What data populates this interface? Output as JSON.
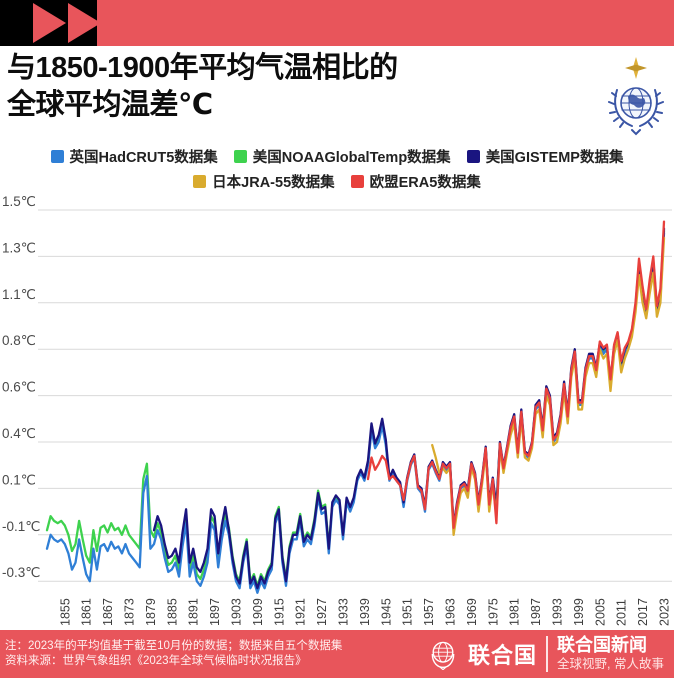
{
  "header": {
    "brand_icon": "fast-forward-icon",
    "bar_black": "#000000",
    "bar_red": "#e8555b"
  },
  "title": {
    "line1": "与1850-1900年平均气温相比的",
    "line2": "全球平均温差℃"
  },
  "legend": {
    "items": [
      {
        "key": "hadcrut5",
        "label": "英国HadCRUT5数据集",
        "color": "#2f7fd6",
        "row": 1
      },
      {
        "key": "noaa",
        "label": "美国NOAAGlobalTemp数据集",
        "color": "#3ed24e",
        "row": 1
      },
      {
        "key": "gistemp",
        "label": "美国GISTEMP数据集",
        "color": "#1a1580",
        "row": 1
      },
      {
        "key": "jra55",
        "label": "日本JRA-55数据集",
        "color": "#d9ab2e",
        "row": 2
      },
      {
        "key": "era5",
        "label": "欧盟ERA5数据集",
        "color": "#e8403c",
        "row": 2
      }
    ]
  },
  "chart_data": {
    "type": "line",
    "title": "与1850-1900年平均气温相比的全球平均温差℃",
    "unit": "℃",
    "baseline": "1850-1900",
    "grid": true,
    "gridline_color": "#d9d9d9",
    "y_axis": {
      "tick_labels": [
        "1.5℃",
        "1.3℃",
        "1.1℃",
        "0.8℃",
        "0.6℃",
        "0.4℃",
        "0.1℃",
        "-0.1℃",
        "-0.3℃"
      ],
      "tick_values": [
        1.5,
        1.3,
        1.1,
        0.8,
        0.6,
        0.4,
        0.1,
        -0.1,
        -0.3
      ]
    },
    "x_axis": {
      "start_year": 1850,
      "end_year": 2023,
      "tick_years": [
        1855,
        1861,
        1867,
        1873,
        1879,
        1885,
        1891,
        1897,
        1903,
        1909,
        1915,
        1921,
        1927,
        1933,
        1939,
        1945,
        1951,
        1957,
        1963,
        1969,
        1975,
        1981,
        1987,
        1993,
        1999,
        2005,
        2011,
        2017,
        2023
      ]
    },
    "series": [
      {
        "key": "hadcrut5",
        "name": "英国HadCRUT5数据集",
        "color": "#2f7fd6",
        "start_year": 1850,
        "values": [
          -0.16,
          -0.1,
          -0.12,
          -0.13,
          -0.12,
          -0.14,
          -0.18,
          -0.25,
          -0.22,
          -0.12,
          -0.2,
          -0.27,
          -0.3,
          -0.16,
          -0.25,
          -0.15,
          -0.14,
          -0.17,
          -0.13,
          -0.16,
          -0.15,
          -0.18,
          -0.14,
          -0.18,
          -0.2,
          -0.22,
          -0.24,
          0.08,
          0.18,
          -0.16,
          -0.14,
          -0.08,
          -0.12,
          -0.2,
          -0.26,
          -0.25,
          -0.22,
          -0.28,
          -0.15,
          -0.05,
          -0.28,
          -0.22,
          -0.3,
          -0.32,
          -0.28,
          -0.22,
          -0.05,
          -0.08,
          -0.24,
          -0.12,
          -0.04,
          -0.1,
          -0.22,
          -0.3,
          -0.33,
          -0.22,
          -0.15,
          -0.33,
          -0.3,
          -0.35,
          -0.3,
          -0.33,
          -0.28,
          -0.25,
          -0.05,
          -0.01,
          -0.22,
          -0.32,
          -0.18,
          -0.12,
          -0.12,
          -0.04,
          -0.15,
          -0.12,
          -0.14,
          -0.06,
          0.06,
          -0.01,
          0.0,
          -0.18,
          0.02,
          0.05,
          0.03,
          -0.12,
          0.04,
          0.0,
          0.04,
          0.15,
          0.2,
          0.15,
          0.25,
          0.45,
          0.36,
          0.4,
          0.47,
          0.38,
          0.15,
          0.2,
          0.15,
          0.12,
          0.02,
          0.15,
          0.25,
          0.3,
          0.1,
          0.08,
          0.0,
          0.22,
          0.26,
          0.2,
          0.15,
          0.25,
          0.22,
          0.25,
          -0.08,
          0.02,
          0.1,
          0.12,
          0.08,
          0.25,
          0.18,
          0.02,
          0.15,
          0.35,
          0.02,
          0.15,
          0.0,
          0.38,
          0.22,
          0.35,
          0.45,
          0.5,
          0.32,
          0.52,
          0.32,
          0.3,
          0.38,
          0.54,
          0.56,
          0.44,
          0.62,
          0.58,
          0.4,
          0.42,
          0.5,
          0.64,
          0.5,
          0.7,
          0.78,
          0.56,
          0.56,
          0.7,
          0.76,
          0.76,
          0.7,
          0.82,
          0.78,
          0.8,
          0.64,
          0.8,
          0.88,
          0.72,
          0.78,
          0.82,
          0.9,
          1.06,
          1.25,
          1.13,
          1.02,
          1.16,
          1.26,
          1.04,
          1.12,
          1.4
        ]
      },
      {
        "key": "noaa",
        "name": "美国NOAAGlobalTemp数据集",
        "color": "#3ed24e",
        "start_year": 1850,
        "values": [
          -0.08,
          -0.02,
          -0.04,
          -0.05,
          -0.04,
          -0.06,
          -0.1,
          -0.17,
          -0.14,
          -0.04,
          -0.12,
          -0.19,
          -0.22,
          -0.08,
          -0.17,
          -0.07,
          -0.06,
          -0.09,
          -0.05,
          -0.08,
          -0.07,
          -0.1,
          -0.06,
          -0.1,
          -0.12,
          -0.14,
          -0.16,
          0.16,
          0.26,
          -0.08,
          -0.11,
          -0.05,
          -0.09,
          -0.17,
          -0.23,
          -0.22,
          -0.19,
          -0.25,
          -0.12,
          -0.02,
          -0.25,
          -0.19,
          -0.27,
          -0.29,
          -0.25,
          -0.19,
          -0.02,
          -0.05,
          -0.21,
          -0.09,
          -0.01,
          -0.07,
          -0.19,
          -0.27,
          -0.3,
          -0.19,
          -0.12,
          -0.3,
          -0.27,
          -0.32,
          -0.27,
          -0.3,
          -0.25,
          -0.22,
          -0.02,
          0.02,
          -0.19,
          -0.29,
          -0.15,
          -0.09,
          -0.09,
          -0.01,
          -0.12,
          -0.09,
          -0.11,
          -0.03,
          0.09,
          0.02,
          0.03,
          -0.15,
          0.03,
          0.06,
          0.04,
          -0.11,
          0.05,
          0.01,
          0.05,
          0.16,
          0.21,
          0.16,
          0.26,
          0.46,
          0.37,
          0.41,
          0.48,
          0.39,
          0.16,
          0.21,
          0.16,
          0.13,
          0.03,
          0.16,
          0.26,
          0.31,
          0.11,
          0.09,
          0.01,
          0.23,
          0.27,
          0.21,
          0.16,
          0.26,
          0.23,
          0.26,
          -0.07,
          0.03,
          0.11,
          0.13,
          0.09,
          0.26,
          0.19,
          0.03,
          0.16,
          0.36,
          0.03,
          0.16,
          0.01,
          0.39,
          0.23,
          0.36,
          0.46,
          0.51,
          0.33,
          0.53,
          0.33,
          0.31,
          0.39,
          0.55,
          0.57,
          0.45,
          0.63,
          0.59,
          0.41,
          0.43,
          0.51,
          0.65,
          0.51,
          0.71,
          0.79,
          0.57,
          0.57,
          0.71,
          0.77,
          0.77,
          0.71,
          0.83,
          0.79,
          0.81,
          0.65,
          0.81,
          0.89,
          0.73,
          0.79,
          0.83,
          0.91,
          1.07,
          1.26,
          1.14,
          1.03,
          1.17,
          1.27,
          1.05,
          1.13,
          1.41
        ]
      },
      {
        "key": "gistemp",
        "name": "美国GISTEMP数据集",
        "color": "#1a1580",
        "start_year": 1880,
        "values": [
          -0.08,
          -0.02,
          -0.06,
          -0.14,
          -0.2,
          -0.19,
          -0.16,
          -0.22,
          -0.09,
          0.01,
          -0.22,
          -0.16,
          -0.24,
          -0.26,
          -0.22,
          -0.16,
          0.01,
          -0.02,
          -0.18,
          -0.06,
          0.02,
          -0.08,
          -0.2,
          -0.28,
          -0.31,
          -0.2,
          -0.13,
          -0.31,
          -0.28,
          -0.33,
          -0.28,
          -0.31,
          -0.26,
          -0.23,
          -0.03,
          0.01,
          -0.2,
          -0.3,
          -0.16,
          -0.1,
          -0.1,
          -0.02,
          -0.13,
          -0.1,
          -0.12,
          -0.04,
          0.08,
          0.01,
          0.02,
          -0.16,
          0.04,
          0.07,
          0.05,
          -0.1,
          0.06,
          0.02,
          0.06,
          0.17,
          0.22,
          0.17,
          0.28,
          0.48,
          0.39,
          0.43,
          0.5,
          0.41,
          0.17,
          0.22,
          0.17,
          0.14,
          0.04,
          0.17,
          0.27,
          0.32,
          0.12,
          0.1,
          0.02,
          0.24,
          0.28,
          0.22,
          0.17,
          0.27,
          0.24,
          0.27,
          -0.06,
          0.04,
          0.12,
          0.14,
          0.1,
          0.27,
          0.2,
          0.04,
          0.17,
          0.37,
          0.04,
          0.17,
          0.02,
          0.4,
          0.24,
          0.37,
          0.47,
          0.52,
          0.34,
          0.54,
          0.34,
          0.32,
          0.4,
          0.56,
          0.58,
          0.46,
          0.64,
          0.6,
          0.42,
          0.44,
          0.52,
          0.66,
          0.52,
          0.72,
          0.8,
          0.58,
          0.58,
          0.72,
          0.78,
          0.78,
          0.72,
          0.84,
          0.8,
          0.82,
          0.66,
          0.82,
          0.9,
          0.74,
          0.8,
          0.84,
          0.92,
          1.08,
          1.27,
          1.15,
          1.04,
          1.18,
          1.28,
          1.06,
          1.14,
          1.42
        ]
      },
      {
        "key": "jra55",
        "name": "日本JRA-55数据集",
        "color": "#d9ab2e",
        "start_year": 1958,
        "values": [
          0.38,
          0.3,
          0.2,
          0.23,
          0.2,
          0.23,
          -0.1,
          0.0,
          0.08,
          0.1,
          0.06,
          0.23,
          0.16,
          0.0,
          0.13,
          0.33,
          0.0,
          0.13,
          -0.02,
          0.36,
          0.2,
          0.33,
          0.43,
          0.48,
          0.3,
          0.5,
          0.3,
          0.28,
          0.36,
          0.52,
          0.54,
          0.42,
          0.6,
          0.56,
          0.38,
          0.4,
          0.48,
          0.62,
          0.48,
          0.68,
          0.76,
          0.54,
          0.54,
          0.68,
          0.74,
          0.74,
          0.68,
          0.8,
          0.76,
          0.78,
          0.62,
          0.78,
          0.86,
          0.7,
          0.76,
          0.8,
          0.88,
          1.04,
          1.22,
          1.1,
          1.0,
          1.14,
          1.23,
          1.01,
          1.1,
          1.38
        ]
      },
      {
        "key": "era5",
        "name": "欧盟ERA5数据集",
        "color": "#e8403c",
        "start_year": 1940,
        "values": [
          0.16,
          0.3,
          0.22,
          0.26,
          0.31,
          0.28,
          0.16,
          0.18,
          0.15,
          0.12,
          0.05,
          0.16,
          0.26,
          0.31,
          0.11,
          0.09,
          0.01,
          0.23,
          0.27,
          0.21,
          0.16,
          0.26,
          0.23,
          0.26,
          -0.07,
          0.03,
          0.11,
          0.13,
          0.09,
          0.26,
          0.19,
          0.03,
          0.16,
          0.36,
          0.03,
          0.16,
          -0.05,
          0.39,
          0.23,
          0.36,
          0.46,
          0.51,
          0.33,
          0.53,
          0.33,
          0.31,
          0.39,
          0.55,
          0.57,
          0.45,
          0.63,
          0.59,
          0.41,
          0.43,
          0.51,
          0.65,
          0.51,
          0.71,
          0.79,
          0.57,
          0.57,
          0.71,
          0.77,
          0.77,
          0.71,
          0.85,
          0.81,
          0.83,
          0.67,
          0.83,
          0.91,
          0.75,
          0.81,
          0.85,
          0.93,
          1.1,
          1.29,
          1.17,
          1.06,
          1.2,
          1.3,
          1.08,
          1.16,
          1.45
        ]
      }
    ]
  },
  "footer": {
    "note1": "注：2023年的平均值基于截至10月份的数据；数据来自五个数据集",
    "note2": "资料来源：世界气象组织《2023年全球气候临时状况报告》",
    "un_label": "联合国",
    "news_label": "联合国新闻",
    "tagline": "全球视野, 常人故事"
  },
  "colors": {
    "accent_red": "#e8555b",
    "gridline": "#d9d9d9",
    "axis_text": "#4a4a4a"
  }
}
